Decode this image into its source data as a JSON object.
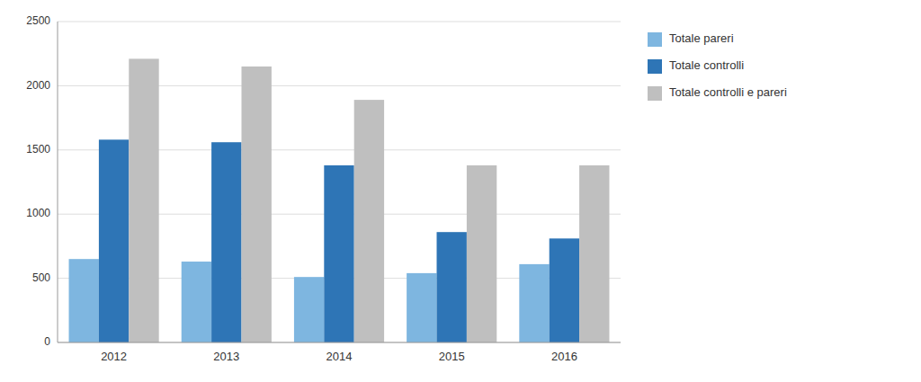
{
  "chart_data": {
    "type": "bar",
    "categories": [
      "2012",
      "2013",
      "2014",
      "2015",
      "2016"
    ],
    "series": [
      {
        "name": "Totale pareri",
        "color": "#7EB6E0",
        "values": [
          650,
          630,
          510,
          540,
          610
        ]
      },
      {
        "name": "Totale controlli",
        "color": "#2E75B6",
        "values": [
          1580,
          1560,
          1380,
          860,
          810
        ]
      },
      {
        "name": "Totale controlli e pareri",
        "color": "#BFBFBF",
        "values": [
          2210,
          2150,
          1890,
          1380,
          1380
        ]
      }
    ],
    "ylim": [
      0,
      2500
    ],
    "yticks": [
      0,
      500,
      1000,
      1500,
      2000,
      2500
    ],
    "grid": true,
    "legend": "right"
  }
}
